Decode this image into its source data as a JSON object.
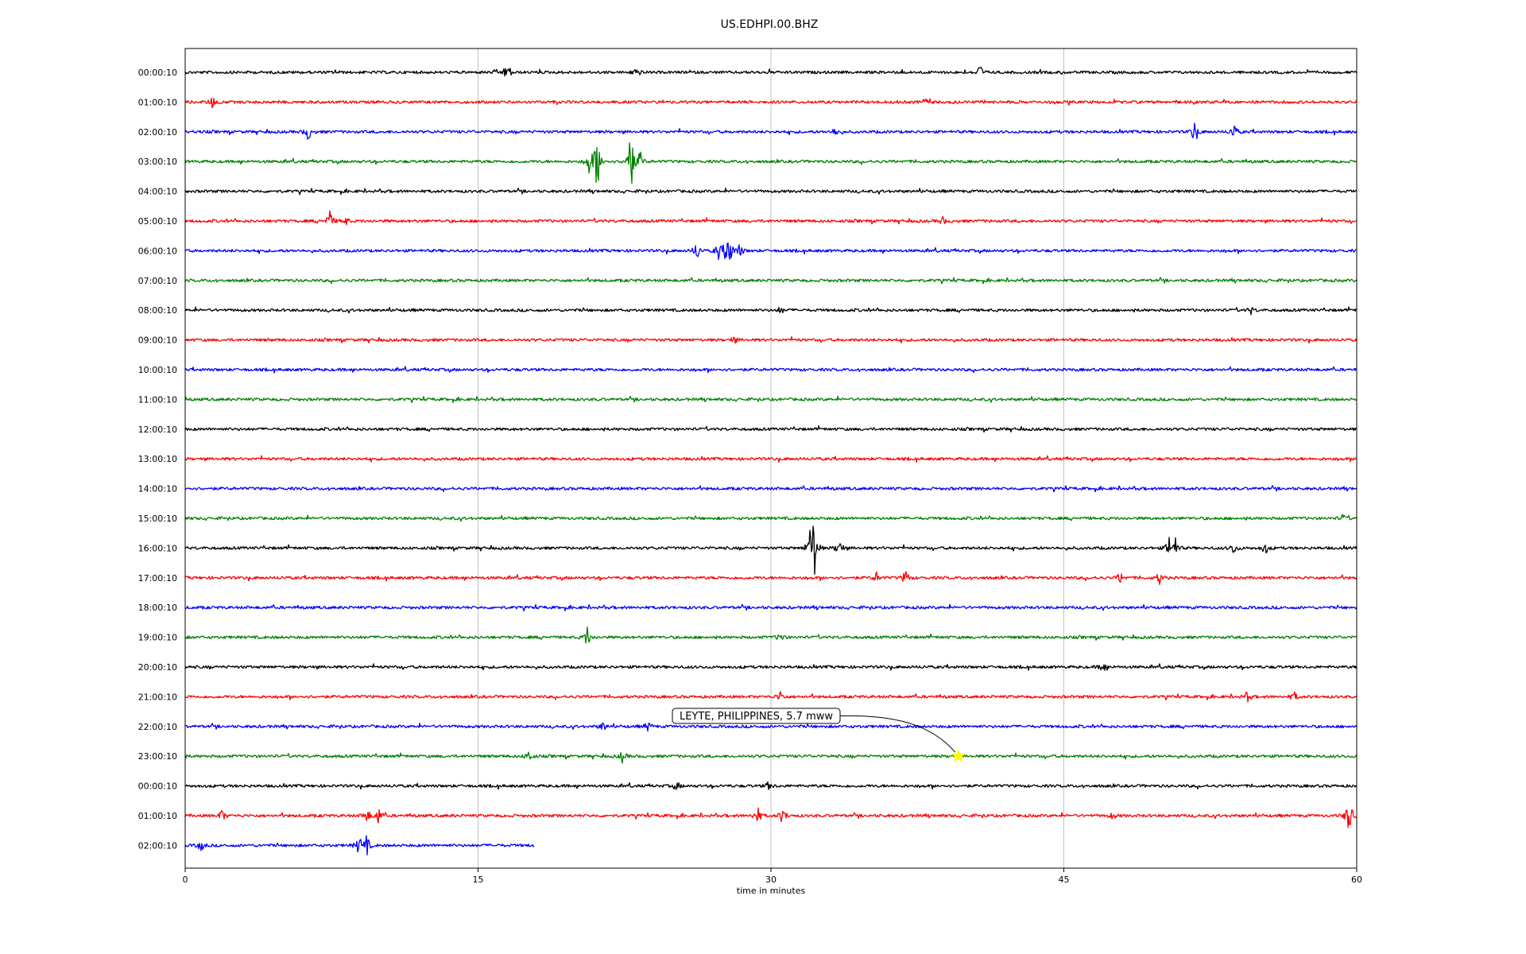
{
  "chart_data": {
    "type": "line",
    "title": "US.EDHPI.00.BHZ",
    "xlabel": "time in minutes",
    "ylabel": "",
    "xlim": [
      0,
      60
    ],
    "x_ticks": [
      "0",
      "15",
      "30",
      "45",
      "60"
    ],
    "grid": "vertical lines at 15, 30, 45",
    "line_colors": [
      "#000000",
      "#ff0000",
      "#0000ff",
      "#008000"
    ],
    "rows": [
      {
        "label": "00:00:10",
        "color": "#000000",
        "end_minute": 60,
        "events": [
          [
            16.5,
            0.9
          ],
          [
            23.1,
            0.5
          ],
          [
            40.7,
            0.6
          ]
        ]
      },
      {
        "label": "01:00:10",
        "color": "#ff0000",
        "end_minute": 60,
        "events": [
          [
            1.4,
            0.5
          ],
          [
            37.9,
            0.3
          ]
        ]
      },
      {
        "label": "02:00:10",
        "color": "#0000ff",
        "end_minute": 60,
        "events": [
          [
            6.3,
            0.7
          ],
          [
            33.3,
            0.4
          ],
          [
            51.7,
            0.9
          ],
          [
            53.7,
            0.7
          ]
        ]
      },
      {
        "label": "03:00:10",
        "color": "#008000",
        "end_minute": 60,
        "events": [
          [
            20.7,
            1.0
          ],
          [
            21.1,
            2.6
          ],
          [
            22.8,
            3.2
          ],
          [
            23.3,
            0.8
          ]
        ]
      },
      {
        "label": "04:00:10",
        "color": "#000000",
        "end_minute": 60,
        "events": []
      },
      {
        "label": "05:00:10",
        "color": "#ff0000",
        "end_minute": 60,
        "events": [
          [
            7.4,
            0.9
          ],
          [
            8.2,
            0.4
          ],
          [
            38.8,
            0.3
          ]
        ]
      },
      {
        "label": "06:00:10",
        "color": "#0000ff",
        "end_minute": 60,
        "events": [
          [
            26.2,
            0.8
          ],
          [
            27.3,
            0.7
          ],
          [
            27.8,
            2.2
          ],
          [
            28.4,
            0.6
          ]
        ]
      },
      {
        "label": "07:00:10",
        "color": "#008000",
        "end_minute": 60,
        "events": []
      },
      {
        "label": "08:00:10",
        "color": "#000000",
        "end_minute": 60,
        "events": [
          [
            30.5,
            0.3
          ],
          [
            54.6,
            0.3
          ]
        ]
      },
      {
        "label": "09:00:10",
        "color": "#ff0000",
        "end_minute": 60,
        "events": [
          [
            28.1,
            0.3
          ]
        ]
      },
      {
        "label": "10:00:10",
        "color": "#0000ff",
        "end_minute": 60,
        "events": []
      },
      {
        "label": "11:00:10",
        "color": "#008000",
        "end_minute": 60,
        "events": []
      },
      {
        "label": "12:00:10",
        "color": "#000000",
        "end_minute": 60,
        "events": []
      },
      {
        "label": "13:00:10",
        "color": "#ff0000",
        "end_minute": 60,
        "events": []
      },
      {
        "label": "14:00:10",
        "color": "#0000ff",
        "end_minute": 60,
        "events": []
      },
      {
        "label": "15:00:10",
        "color": "#008000",
        "end_minute": 60,
        "events": [
          [
            59.3,
            0.3
          ]
        ]
      },
      {
        "label": "16:00:10",
        "color": "#000000",
        "end_minute": 60,
        "events": [
          [
            32.0,
            1.2
          ],
          [
            32.2,
            2.8
          ],
          [
            33.5,
            0.8
          ],
          [
            50.4,
            0.9
          ],
          [
            50.7,
            0.8
          ],
          [
            53.7,
            0.5
          ],
          [
            55.3,
            0.5
          ]
        ]
      },
      {
        "label": "17:00:10",
        "color": "#ff0000",
        "end_minute": 60,
        "events": [
          [
            35.4,
            0.4
          ],
          [
            36.9,
            0.7
          ],
          [
            47.9,
            0.5
          ],
          [
            49.9,
            0.5
          ]
        ]
      },
      {
        "label": "18:00:10",
        "color": "#0000ff",
        "end_minute": 60,
        "events": []
      },
      {
        "label": "19:00:10",
        "color": "#008000",
        "end_minute": 60,
        "events": [
          [
            20.6,
            0.9
          ],
          [
            30.5,
            0.4
          ]
        ]
      },
      {
        "label": "20:00:10",
        "color": "#000000",
        "end_minute": 60,
        "events": [
          [
            47.0,
            0.5
          ]
        ]
      },
      {
        "label": "21:00:10",
        "color": "#ff0000",
        "end_minute": 60,
        "events": [
          [
            30.5,
            0.5
          ],
          [
            54.4,
            0.4
          ],
          [
            56.8,
            0.4
          ]
        ]
      },
      {
        "label": "22:00:10",
        "color": "#0000ff",
        "end_minute": 60,
        "events": [
          [
            21.4,
            0.4
          ],
          [
            23.7,
            0.4
          ]
        ]
      },
      {
        "label": "23:00:10",
        "color": "#008000",
        "end_minute": 60,
        "events": [
          [
            17.6,
            0.5
          ],
          [
            22.4,
            0.5
          ]
        ]
      },
      {
        "label": "00:00:10",
        "color": "#000000",
        "end_minute": 60,
        "events": [
          [
            25.2,
            0.3
          ],
          [
            29.9,
            0.4
          ]
        ]
      },
      {
        "label": "01:00:10",
        "color": "#ff0000",
        "end_minute": 60,
        "events": [
          [
            1.9,
            0.5
          ],
          [
            9.3,
            0.6
          ],
          [
            9.9,
            0.7
          ],
          [
            29.3,
            0.8
          ],
          [
            30.6,
            0.7
          ],
          [
            47.5,
            0.3
          ],
          [
            59.6,
            1.6
          ]
        ]
      },
      {
        "label": "02:00:10",
        "color": "#0000ff",
        "end_minute": 17.9,
        "events": [
          [
            0.8,
            0.5
          ],
          [
            8.9,
            0.8
          ],
          [
            9.3,
            0.8
          ]
        ]
      }
    ],
    "annotation": {
      "text": "LEYTE, PHILIPPINES, 5.7 mww",
      "row_index": 23,
      "minute": 39.6,
      "marker": "star",
      "marker_color": "#ffff00"
    }
  }
}
